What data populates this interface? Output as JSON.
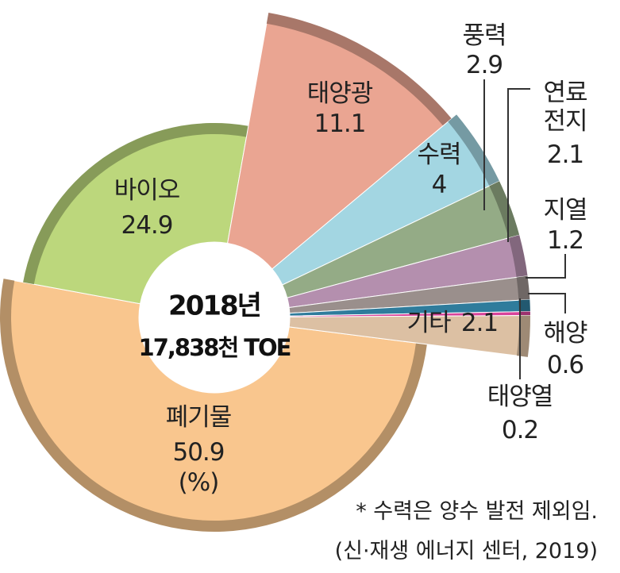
{
  "chart_data": {
    "type": "pie",
    "categories": [
      "폐기물",
      "바이오",
      "태양광",
      "수력",
      "풍력",
      "연료전지",
      "지열",
      "해양",
      "태양열",
      "기타"
    ],
    "values": [
      50.9,
      24.9,
      11.1,
      4.0,
      2.9,
      2.1,
      1.2,
      0.6,
      0.2,
      2.1
    ],
    "colors": [
      "#f9c68e",
      "#bcd77c",
      "#eaa592",
      "#a3d6e2",
      "#94ab86",
      "#b48fae",
      "#9a8f8c",
      "#2f7c9c",
      "#d8449a",
      "#dcc0a3"
    ],
    "unit": "(%)",
    "center_title": "2018년",
    "center_subtitle": "17,838천 TOE",
    "note": "* 수력은 양수 발전 제외임.",
    "source": "(신·재생 에너지 센터, 2019)"
  }
}
